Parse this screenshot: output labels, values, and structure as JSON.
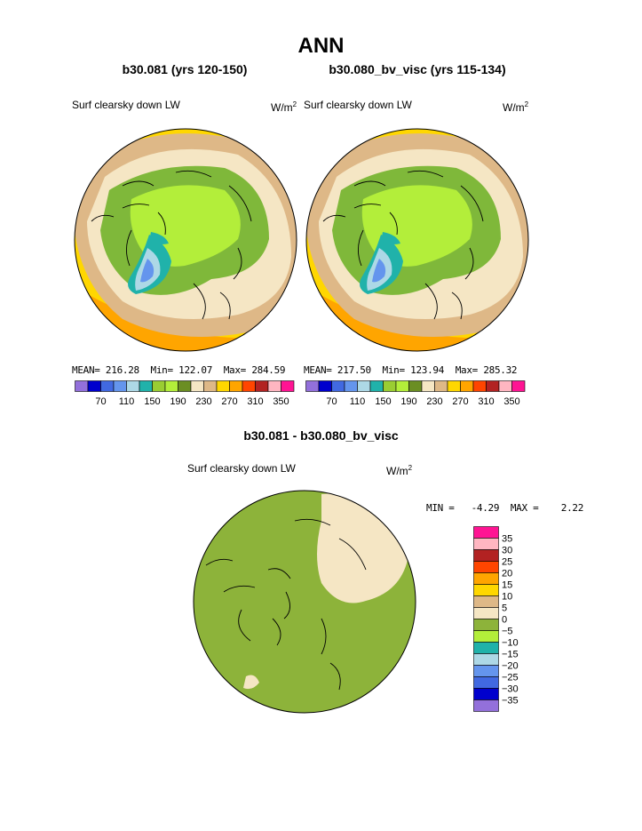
{
  "main_title": "ANN",
  "units": "W/m",
  "units_sup": "2",
  "panels": [
    {
      "case_title": "b30.081 (yrs 120-150)",
      "variable": "Surf clearsky down LW",
      "stats": "MEAN= 216.28  Min= 122.07  Max= 284.59"
    },
    {
      "case_title": "b30.080_bv_visc (yrs 115-134)",
      "variable": "Surf clearsky down LW",
      "stats": "MEAN= 217.50  Min= 123.94  Max= 285.32"
    }
  ],
  "colorbar_top": {
    "colors": [
      "#9370db",
      "#0000cd",
      "#4169e1",
      "#6495ed",
      "#add8e6",
      "#20b2aa",
      "#9acd32",
      "#b3ee3a",
      "#6b8e23",
      "#f5e6c4",
      "#deb887",
      "#ffd700",
      "#ffa500",
      "#ff4500",
      "#b22222",
      "#ffb6c1",
      "#ff1493"
    ],
    "labels": [
      "70",
      "110",
      "150",
      "190",
      "230",
      "270",
      "310",
      "350"
    ]
  },
  "diff": {
    "title": "b30.081 - b30.080_bv_visc",
    "variable": "Surf clearsky down LW",
    "stats": "MIN =   -4.29  MAX =    2.22"
  },
  "colorbar_diff": {
    "colors": [
      "#ff1493",
      "#ffb6c1",
      "#b22222",
      "#ff4500",
      "#ffa500",
      "#ffd700",
      "#deb887",
      "#f5e6c4",
      "#8db33a",
      "#b3ee3a",
      "#20b2aa",
      "#add8e6",
      "#6495ed",
      "#4169e1",
      "#0000cd",
      "#9370db"
    ],
    "labels": [
      "35",
      "30",
      "25",
      "20",
      "15",
      "10",
      "5",
      "0",
      "−5",
      "−10",
      "−15",
      "−20",
      "−25",
      "−30",
      "−35"
    ]
  }
}
